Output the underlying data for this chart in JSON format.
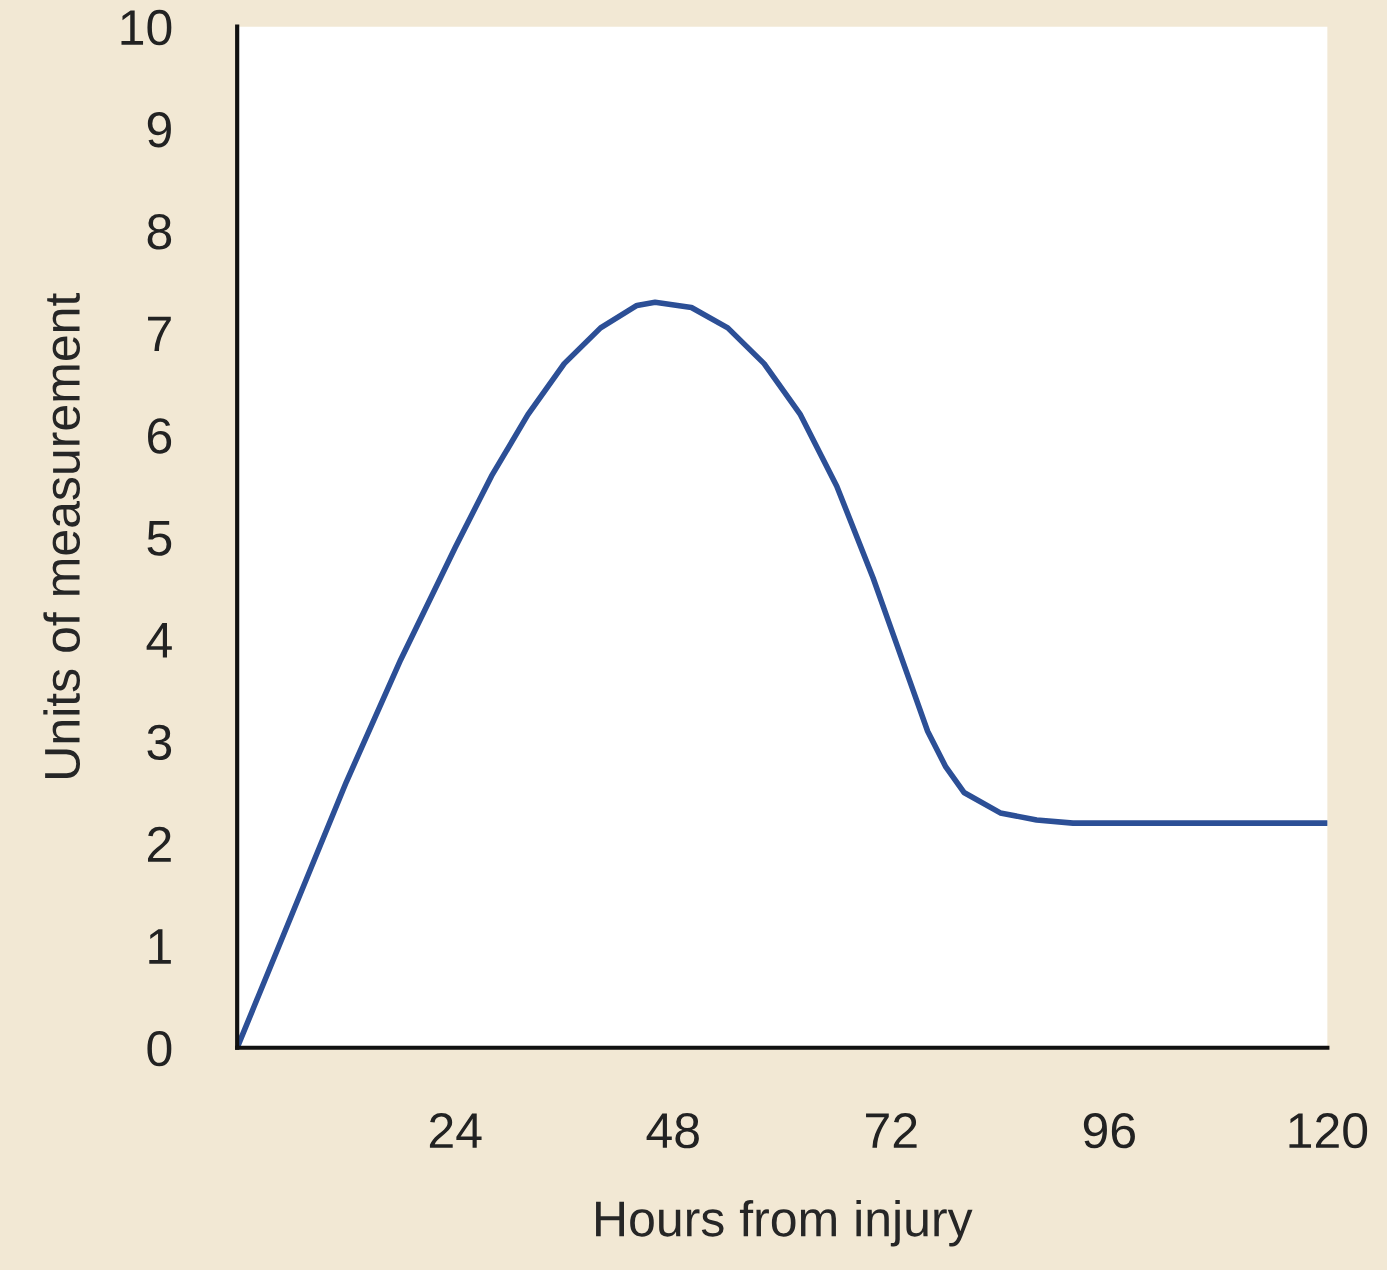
{
  "chart_data": {
    "type": "line",
    "xlabel": "Hours from injury",
    "ylabel": "Units of measurement",
    "x": [
      0,
      6,
      12,
      18,
      24,
      28,
      32,
      36,
      40,
      44,
      46,
      50,
      54,
      58,
      62,
      66,
      70,
      72,
      74,
      76,
      78,
      80,
      84,
      88,
      92,
      100,
      110,
      120
    ],
    "series": [
      {
        "color": "#2c4f96",
        "values": [
          0,
          1.3,
          2.6,
          3.8,
          4.9,
          5.6,
          6.2,
          6.7,
          7.05,
          7.27,
          7.3,
          7.25,
          7.05,
          6.7,
          6.2,
          5.5,
          4.6,
          4.1,
          3.6,
          3.1,
          2.75,
          2.5,
          2.3,
          2.23,
          2.2,
          2.2,
          2.2,
          2.2
        ]
      }
    ],
    "xlim": [
      0,
      120
    ],
    "xticks": [
      24,
      48,
      72,
      96,
      120
    ],
    "ylim": [
      0,
      10
    ],
    "yticks": [
      0,
      1,
      2,
      3,
      4,
      5,
      6,
      7,
      8,
      9,
      10
    ],
    "grid": false,
    "legend": false,
    "marker": "none",
    "line_style": "solid"
  }
}
